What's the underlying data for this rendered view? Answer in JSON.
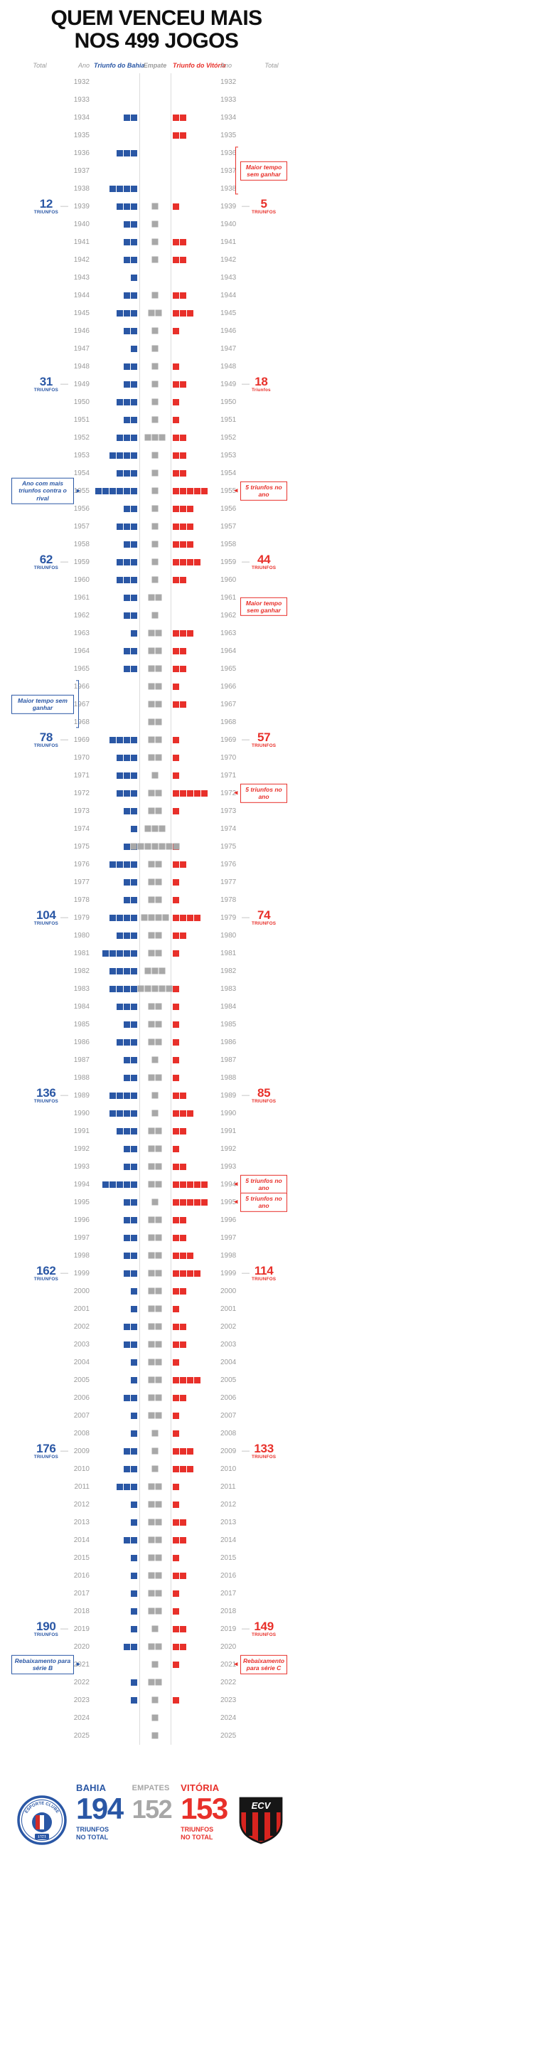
{
  "title": {
    "line1": "QUEM VENCEU MAIS",
    "line2": "NOS 499 JOGOS"
  },
  "headers": {
    "total_left": "Total",
    "ano_left": "Ano",
    "bahia": "Triunfo do Bahia",
    "empate": "Empate",
    "vitoria": "Triunfo do Vitória",
    "ano_right": "Ano",
    "total_right": "Total"
  },
  "colors": {
    "bahia": "#2a57a5",
    "vitoria": "#e8302a",
    "empate": "#a8a8a8",
    "year_text": "#9b9b9b"
  },
  "icons": {
    "arrow_right": "▶",
    "arrow_left": "◀"
  },
  "chart_data": {
    "type": "bar",
    "subtype": "diverging-yearly-rows",
    "years": {
      "start": 1932,
      "end": 2025
    },
    "marker_dash": "—",
    "series": [
      {
        "name": "Triunfo do Bahia",
        "color": "#2a57a5",
        "values": [
          0,
          0,
          2,
          0,
          3,
          0,
          4,
          3,
          2,
          2,
          2,
          1,
          2,
          3,
          2,
          1,
          2,
          2,
          3,
          2,
          3,
          4,
          3,
          6,
          2,
          3,
          2,
          3,
          3,
          2,
          2,
          1,
          2,
          2,
          0,
          0,
          0,
          4,
          3,
          3,
          3,
          2,
          1,
          2,
          4,
          2,
          2,
          4,
          3,
          5,
          4,
          4,
          3,
          2,
          3,
          2,
          2,
          4,
          4,
          3,
          2,
          2,
          5,
          2,
          2,
          2,
          2,
          2,
          1,
          1,
          2,
          2,
          1,
          1,
          2,
          1,
          1,
          2,
          2,
          3,
          1,
          1,
          2,
          1,
          1,
          1,
          1,
          1,
          2,
          0,
          1,
          1,
          0,
          0
        ]
      },
      {
        "name": "Empate",
        "color": "#a8a8a8",
        "values": [
          0,
          0,
          0,
          0,
          0,
          0,
          0,
          1,
          1,
          1,
          1,
          0,
          1,
          2,
          1,
          1,
          1,
          1,
          1,
          1,
          3,
          1,
          1,
          1,
          1,
          1,
          1,
          1,
          1,
          2,
          1,
          2,
          2,
          2,
          2,
          2,
          2,
          2,
          2,
          1,
          2,
          2,
          3,
          7,
          2,
          2,
          2,
          4,
          2,
          2,
          3,
          5,
          2,
          2,
          2,
          1,
          2,
          1,
          1,
          2,
          2,
          2,
          2,
          1,
          2,
          2,
          2,
          2,
          2,
          2,
          2,
          2,
          2,
          2,
          2,
          2,
          1,
          1,
          1,
          2,
          2,
          2,
          2,
          2,
          2,
          2,
          2,
          1,
          2,
          1,
          2,
          1,
          1,
          1
        ]
      },
      {
        "name": "Triunfo do Vitória",
        "color": "#e8302a",
        "values": [
          0,
          0,
          2,
          2,
          0,
          0,
          0,
          1,
          0,
          2,
          2,
          0,
          2,
          3,
          1,
          0,
          1,
          2,
          1,
          1,
          2,
          2,
          2,
          5,
          3,
          3,
          3,
          4,
          2,
          0,
          0,
          3,
          2,
          2,
          1,
          2,
          0,
          1,
          1,
          1,
          5,
          1,
          0,
          1,
          2,
          1,
          1,
          4,
          2,
          1,
          0,
          1,
          1,
          1,
          1,
          1,
          1,
          2,
          3,
          2,
          1,
          2,
          5,
          5,
          2,
          2,
          3,
          4,
          2,
          1,
          2,
          2,
          1,
          4,
          2,
          1,
          1,
          3,
          3,
          1,
          1,
          2,
          2,
          1,
          2,
          1,
          1,
          2,
          2,
          1,
          0,
          1,
          0,
          0
        ]
      }
    ],
    "cumulative_markers": {
      "bahia": [
        {
          "year": 1939,
          "value": "12",
          "label": "TRIUNFOS"
        },
        {
          "year": 1949,
          "value": "31",
          "label": "TRIUNFOS"
        },
        {
          "year": 1959,
          "value": "62",
          "label": "TRIUNFOS"
        },
        {
          "year": 1969,
          "value": "78",
          "label": "TRIUNFOS"
        },
        {
          "year": 1979,
          "value": "104",
          "label": "TRIUNFOS"
        },
        {
          "year": 1989,
          "value": "136",
          "label": "TRIUNFOS"
        },
        {
          "year": 1999,
          "value": "162",
          "label": "TRIUNFOS"
        },
        {
          "year": 2009,
          "value": "176",
          "label": "TRIUNFOS"
        },
        {
          "year": 2019,
          "value": "190",
          "label": "TRIUNFOS"
        }
      ],
      "vitoria": [
        {
          "year": 1939,
          "value": "5",
          "label": "TRIUNFOS"
        },
        {
          "year": 1949,
          "value": "18",
          "label": "Triunfos"
        },
        {
          "year": 1959,
          "value": "44",
          "label": "TRIUNFOS"
        },
        {
          "year": 1969,
          "value": "57",
          "label": "TRIUNFOS"
        },
        {
          "year": 1979,
          "value": "74",
          "label": "TRIUNFOS"
        },
        {
          "year": 1989,
          "value": "85",
          "label": "TRIUNFOS"
        },
        {
          "year": 1999,
          "value": "114",
          "label": "TRIUNFOS"
        },
        {
          "year": 2009,
          "value": "133",
          "label": "TRIUNFOS"
        },
        {
          "year": 2019,
          "value": "149",
          "label": "TRIUNFOS"
        }
      ]
    },
    "annotations": [
      {
        "side": "left",
        "year": 1955,
        "text": "Ano com mais triunfos contra o rival",
        "marker": "arrow"
      },
      {
        "side": "left",
        "year": 1967,
        "text": "Maior tempo sem ganhar",
        "marker": "bracket",
        "span": 3
      },
      {
        "side": "left",
        "year": 2021,
        "text": "Rebaixamento para série B",
        "marker": "arrow"
      },
      {
        "side": "right",
        "year": 1937,
        "text": "Maior tempo sem ganhar",
        "marker": "bracket",
        "span": 3
      },
      {
        "side": "right",
        "year": 1955,
        "text": "5 triunfos no ano",
        "marker": "arrow"
      },
      {
        "side": "right",
        "year": 1961.5,
        "text": "Maior tempo sem ganhar",
        "marker": "none"
      },
      {
        "side": "right",
        "year": 1972,
        "text": "5 triunfos no ano",
        "marker": "arrow"
      },
      {
        "side": "right",
        "year": 1994,
        "text": "5 triunfos no ano",
        "marker": "arrow"
      },
      {
        "side": "right",
        "year": 1995,
        "text": "5 triunfos no ano",
        "marker": "arrow"
      },
      {
        "side": "right",
        "year": 2021,
        "text": "Rebaixamento para série C",
        "marker": "arrow"
      }
    ],
    "totals": {
      "bahia": 194,
      "empates": 152,
      "vitoria": 153,
      "jogos": 499
    }
  },
  "footer": {
    "bahia": {
      "name": "BAHIA",
      "total": "194",
      "sub_line1": "TRIUNFOS",
      "sub_line2": "NO TOTAL"
    },
    "empates": {
      "name": "EMPATES",
      "total": "152"
    },
    "vitoria": {
      "name": "VITÓRIA",
      "total": "153",
      "sub_line1": "TRIUNFOS",
      "sub_line2": "NO TOTAL"
    },
    "bahia_crest": {
      "top_text": "ESPORTE CLUBE",
      "bottom_text": "BAHIA",
      "year": "1931"
    },
    "vitoria_crest": {
      "monogram": "ECV"
    }
  }
}
